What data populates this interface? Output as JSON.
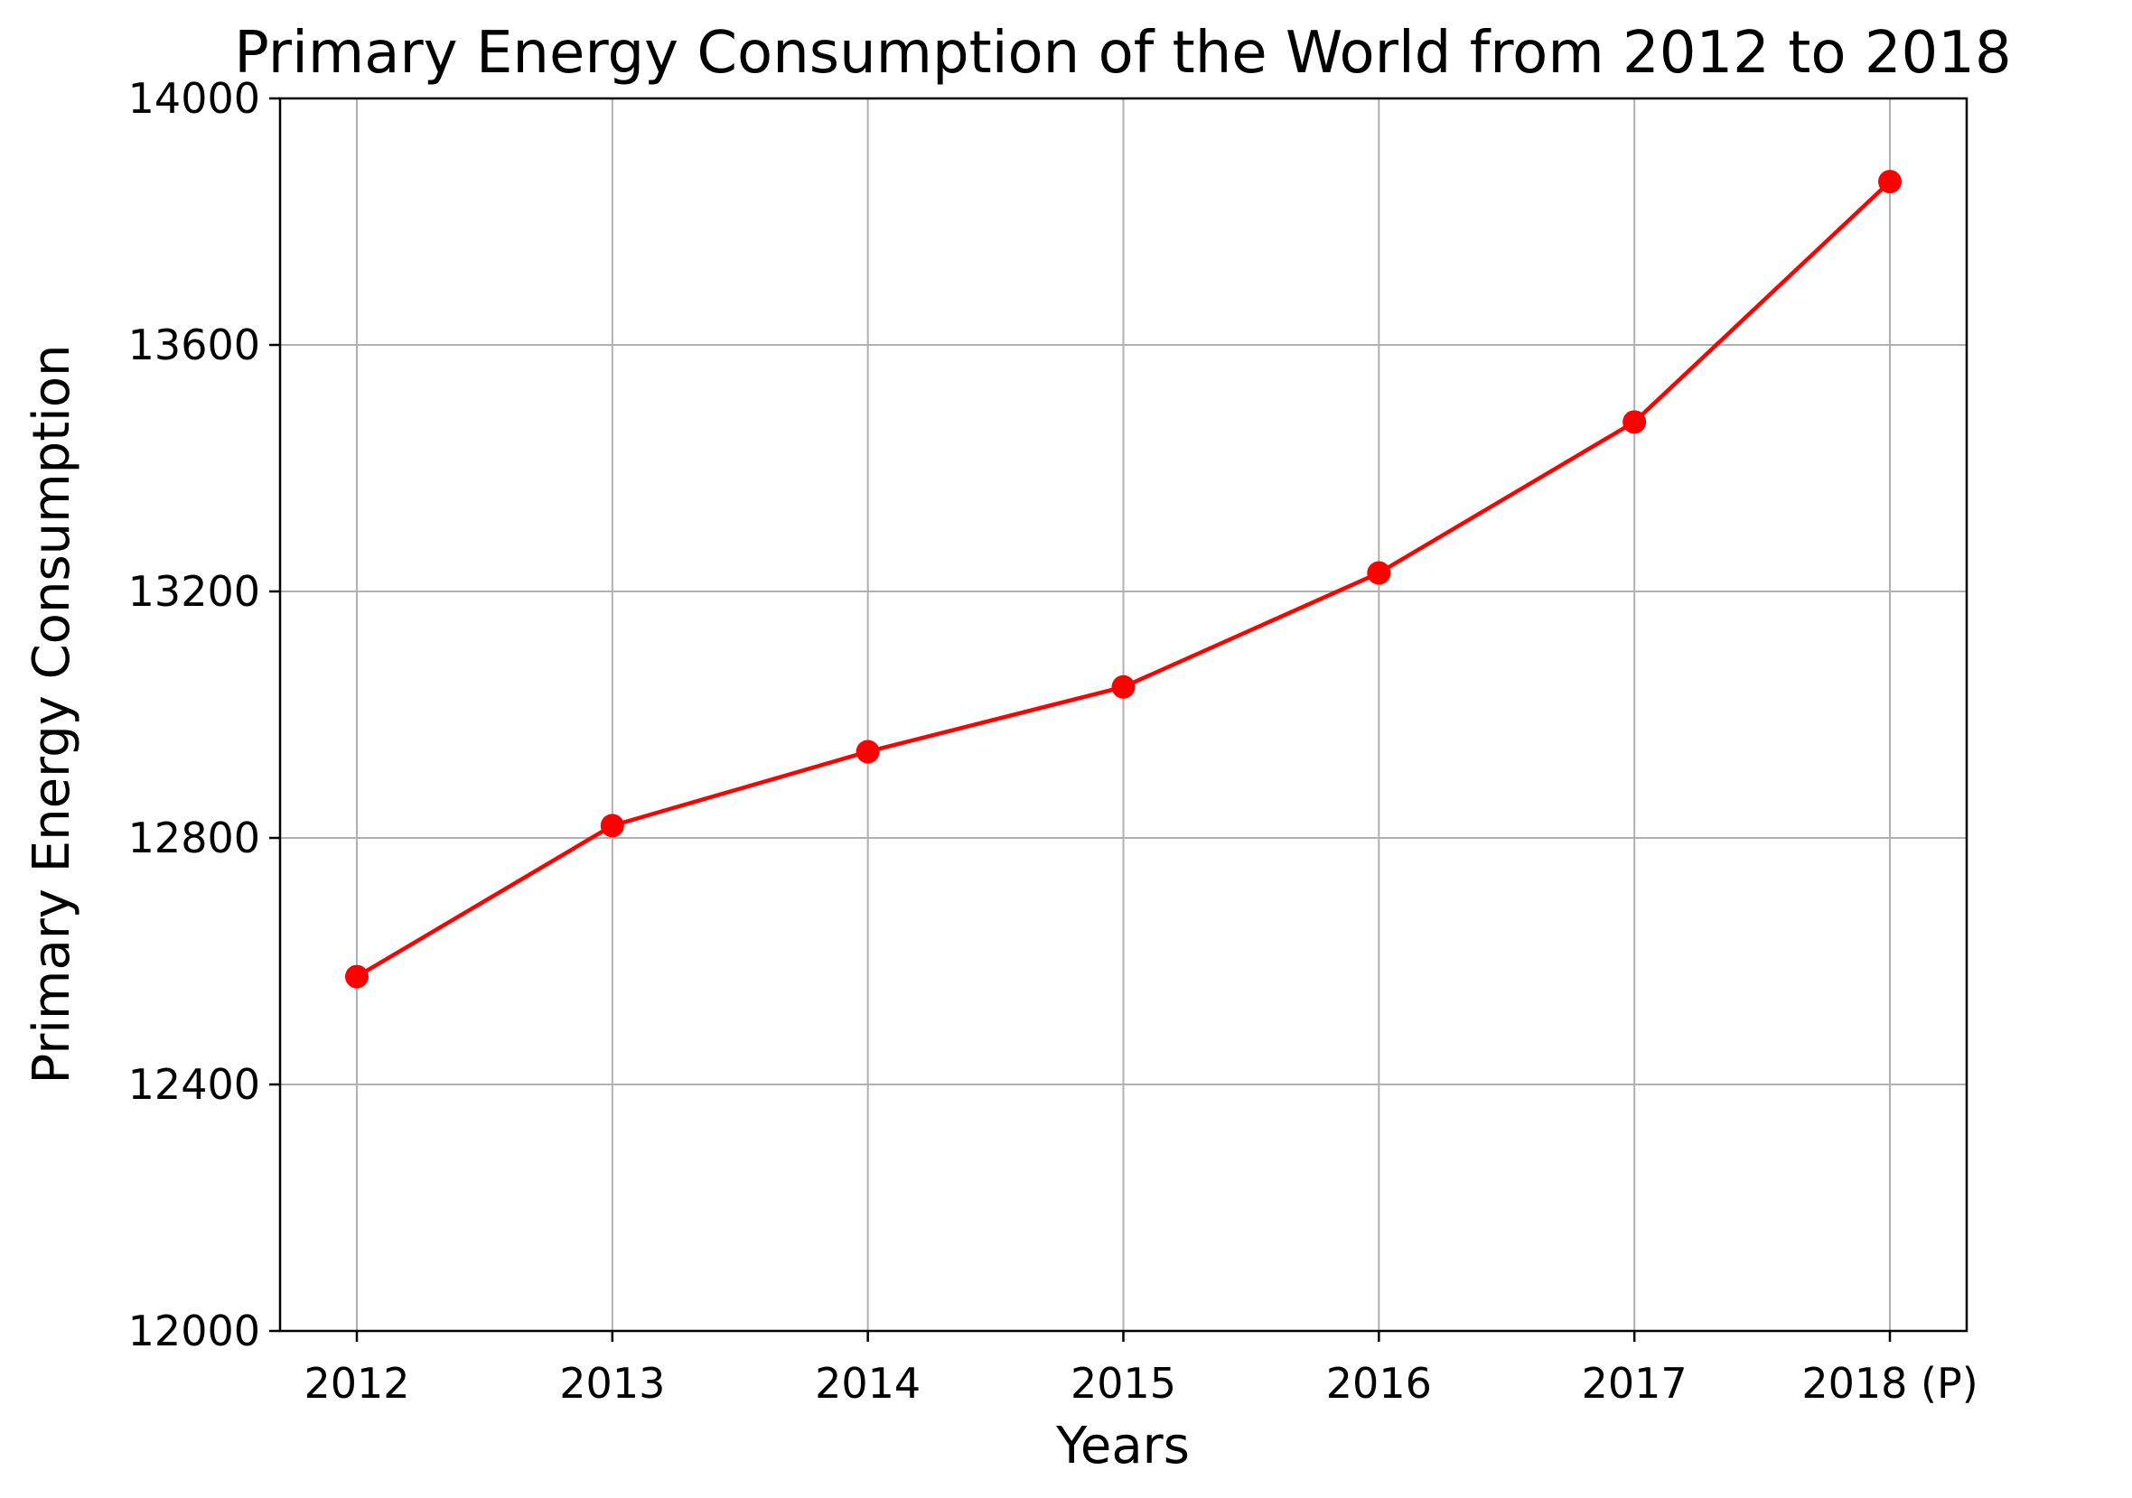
{
  "chart_data": {
    "type": "line",
    "title": "Primary Energy Consumption of the World from 2012 to 2018",
    "xlabel": "Years",
    "ylabel": "Primary Energy Consumption",
    "categories": [
      "2012",
      "2013",
      "2014",
      "2015",
      "2016",
      "2017",
      "2018 (P)"
    ],
    "series": [
      {
        "values": [
          12575,
          12820,
          12940,
          13045,
          13230,
          13475,
          13865
        ],
        "color": "#ff0000",
        "marker": "circle"
      }
    ],
    "ylim": [
      12000,
      14000
    ],
    "yticks": [
      12000,
      12400,
      12800,
      13200,
      13600,
      14000
    ],
    "grid": true,
    "legend": "none"
  }
}
